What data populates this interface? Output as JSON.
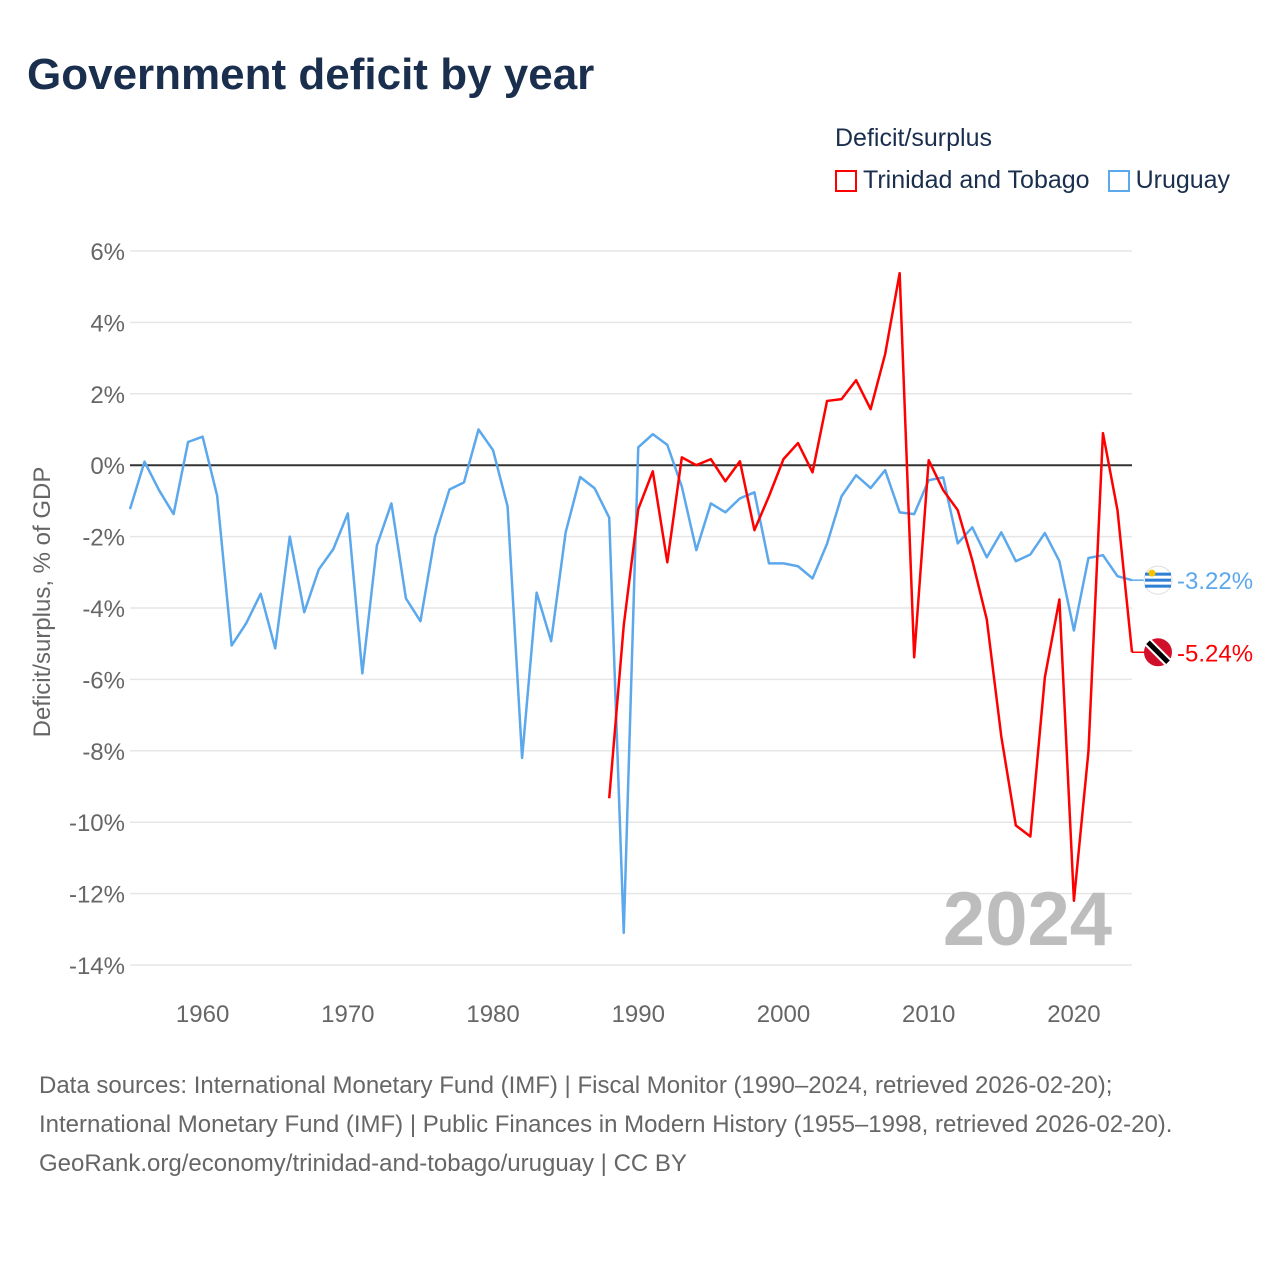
{
  "title": "Government deficit by year",
  "legend": {
    "title": "Deficit/surplus",
    "items": [
      {
        "name": "Trinidad and Tobago",
        "color": "#ff0000"
      },
      {
        "name": "Uruguay",
        "color": "#5ba8ec"
      }
    ]
  },
  "chart_data": {
    "type": "line",
    "title": "Government deficit by year",
    "xlabel": "",
    "ylabel": "Deficit/surplus, % of GDP",
    "xlim": [
      1955,
      2024
    ],
    "ylim": [
      -14,
      6
    ],
    "x_ticks": [
      "1960",
      "1970",
      "1980",
      "1990",
      "2000",
      "2010",
      "2020"
    ],
    "y_ticks": [
      {
        "v": 6,
        "label": "6%"
      },
      {
        "v": 4,
        "label": "4%"
      },
      {
        "v": 2,
        "label": "2%"
      },
      {
        "v": 0,
        "label": "0%"
      },
      {
        "v": -2,
        "label": "-2%"
      },
      {
        "v": -4,
        "label": "-4%"
      },
      {
        "v": -6,
        "label": "-6%"
      },
      {
        "v": -8,
        "label": "-8%"
      },
      {
        "v": -10,
        "label": "-10%"
      },
      {
        "v": -12,
        "label": "-12%"
      },
      {
        "v": -14,
        "label": "-14%"
      }
    ],
    "grid": true,
    "legend_position": "top-right",
    "watermark_year": "2024",
    "series": [
      {
        "name": "Uruguay",
        "color": "#5ba8ec",
        "start_year": 1955,
        "end_label": "-3.22%",
        "values": [
          -1.23,
          0.1,
          -0.7,
          -1.37,
          0.65,
          0.8,
          -0.85,
          -5.05,
          -4.43,
          -3.6,
          -5.13,
          -2.0,
          -4.12,
          -2.92,
          -2.35,
          -1.35,
          -5.83,
          -2.25,
          -1.07,
          -3.73,
          -4.37,
          -2.0,
          -0.68,
          -0.48,
          1.0,
          0.42,
          -1.15,
          -8.2,
          -3.57,
          -4.93,
          -1.88,
          -0.33,
          -0.65,
          -1.47,
          -13.1,
          0.5,
          0.87,
          0.57,
          -0.6,
          -2.38,
          -1.07,
          -1.32,
          -0.93,
          -0.76,
          -2.75,
          -2.75,
          -2.83,
          -3.17,
          -2.2,
          -0.87,
          -0.28,
          -0.64,
          -0.14,
          -1.32,
          -1.37,
          -0.42,
          -0.34,
          -2.19,
          -1.74,
          -2.58,
          -1.88,
          -2.69,
          -2.5,
          -1.9,
          -2.69,
          -4.63,
          -2.6,
          -2.52,
          -3.11,
          -3.22
        ]
      },
      {
        "name": "Trinidad and Tobago",
        "color": "#ff0000",
        "start_year": 1988,
        "end_label": "-5.24%",
        "values": [
          -9.33,
          -4.49,
          -1.23,
          -0.17,
          -2.72,
          0.22,
          0.0,
          0.17,
          -0.45,
          0.11,
          -1.82,
          -0.87,
          0.17,
          0.62,
          -0.2,
          1.8,
          1.85,
          2.38,
          1.57,
          3.11,
          5.38,
          -5.38,
          0.14,
          -0.7,
          -1.26,
          -2.66,
          -4.32,
          -7.6,
          -10.09,
          -10.4,
          -5.94,
          -3.76,
          -12.2,
          -8.02,
          0.9,
          -1.26,
          -5.24
        ]
      }
    ]
  },
  "footer": {
    "sources": "Data sources: International Monetary Fund (IMF) | Fiscal Monitor (1990–2024, retrieved 2026-02-20); International Monetary Fund (IMF) | Public Finances in Modern History (1955–1998, retrieved 2026-02-20).",
    "credit": "GeoRank.org/economy/trinidad-and-tobago/uruguay | CC BY"
  }
}
